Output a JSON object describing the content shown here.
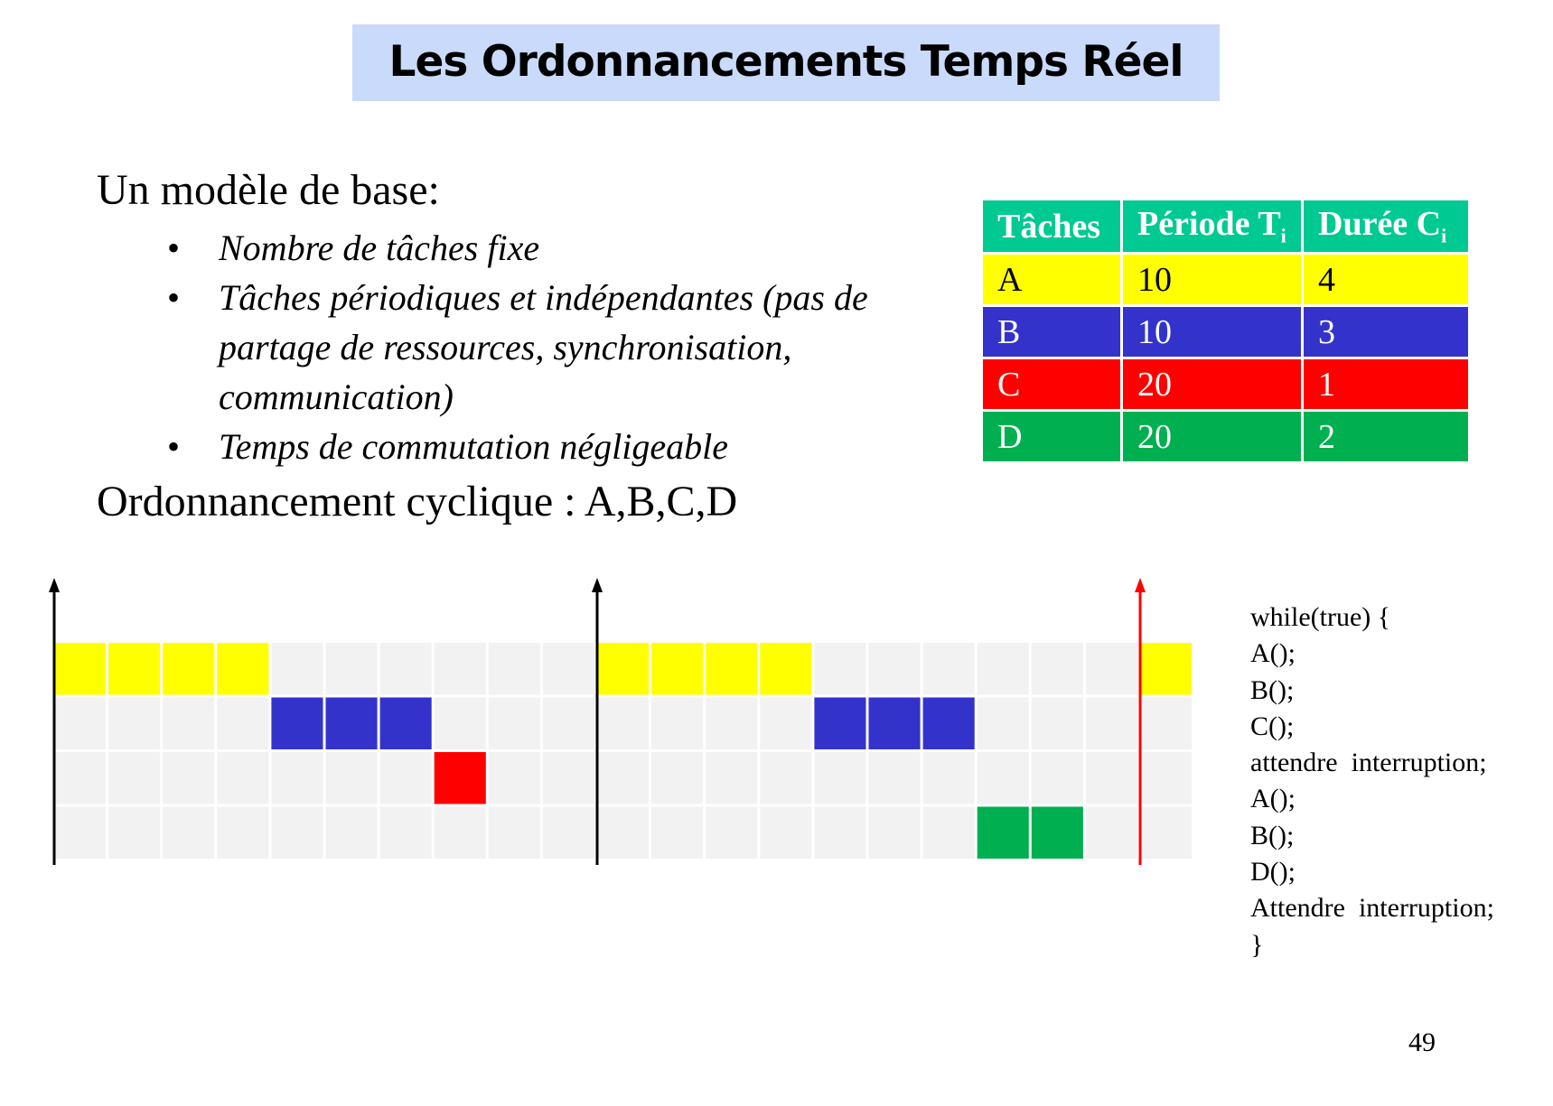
{
  "title": "Les Ordonnancements Temps Réel",
  "intro": "Un modèle de base:",
  "bullets": [
    "Nombre de tâches fixe",
    "Tâches périodiques et indépendantes (pas de partage de ressources, synchronisation, communication)",
    "Temps de commutation négligeable"
  ],
  "cyclic_label": "Ordonnancement  cyclique : A,B,C,D",
  "table": {
    "headers": [
      "Tâches",
      "Période T",
      "Durée C"
    ],
    "header_sub": [
      "",
      "i",
      "i"
    ],
    "rows": [
      {
        "task": "A",
        "period": "10",
        "duration": "4",
        "color": "#ffff00",
        "text_color": "#000000"
      },
      {
        "task": "B",
        "period": "10",
        "duration": "3",
        "color": "#3333cc",
        "text_color": "#ffffff"
      },
      {
        "task": "C",
        "period": "20",
        "duration": "1",
        "color": "#ff0000",
        "text_color": "#ffffff"
      },
      {
        "task": "D",
        "period": "20",
        "duration": "2",
        "color": "#00b050",
        "text_color": "#ffffff"
      }
    ]
  },
  "chart_data": {
    "type": "gantt",
    "time_range": [
      0,
      21
    ],
    "tasks": [
      "A",
      "B",
      "C",
      "D"
    ],
    "segments": [
      {
        "task": "A",
        "start": 0,
        "end": 4,
        "color": "#ffff00"
      },
      {
        "task": "B",
        "start": 4,
        "end": 7,
        "color": "#3333cc"
      },
      {
        "task": "C",
        "start": 7,
        "end": 8,
        "color": "#ff0000"
      },
      {
        "task": "A",
        "start": 10,
        "end": 14,
        "color": "#ffff00"
      },
      {
        "task": "B",
        "start": 14,
        "end": 17,
        "color": "#3333cc"
      },
      {
        "task": "D",
        "start": 17,
        "end": 19,
        "color": "#00b050"
      },
      {
        "task": "A",
        "start": 20,
        "end": 21,
        "color": "#ffff00"
      }
    ],
    "markers": [
      {
        "time": 0,
        "color": "#000000"
      },
      {
        "time": 10,
        "color": "#000000"
      },
      {
        "time": 20,
        "color": "#ff0000"
      }
    ],
    "grid_color": "#f2f2f2"
  },
  "code_lines": [
    "while(true) {",
    "A();",
    "B();",
    "C();",
    "attendre  interruption;",
    "A();",
    "B();",
    "D();",
    "Attendre  interruption;",
    "}"
  ],
  "page_number": "49"
}
